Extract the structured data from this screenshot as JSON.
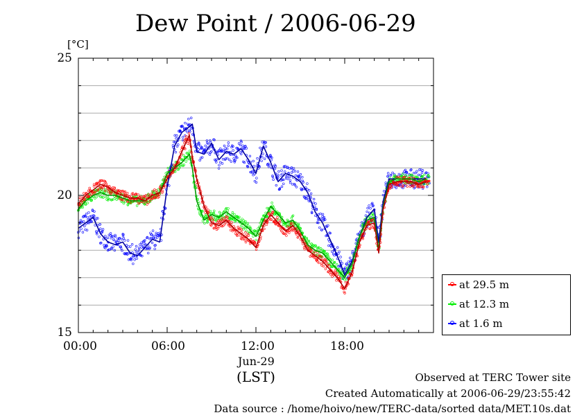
{
  "title": "Dew Point / 2006-06-29",
  "unit": "[°C]",
  "date_label": "Jun-29",
  "lst_label": "(LST)",
  "footer": {
    "line1": "Observed at TERC Tower site",
    "line2": "Created Automatically at 2006-06-29/23:55:42",
    "line3": "Data source : /home/hoivo/new/TERC-data/sorted  data/MET.10s.dat"
  },
  "colors": {
    "s1": "#ff0000",
    "s2": "#00ee00",
    "s3": "#0000ff"
  },
  "chart_data": {
    "type": "line",
    "title": "Dew Point / 2006-06-29",
    "ylabel": "[°C]",
    "xlabel": "(LST)",
    "xlim": [
      0,
      24
    ],
    "ylim": [
      15,
      25
    ],
    "yticks": [
      "15",
      "20",
      "25"
    ],
    "xticks": [
      "00:00",
      "06:00",
      "12:00",
      "18:00"
    ],
    "grid": true,
    "legend_position": "bottom-right-outside",
    "series": [
      {
        "name": "at 29.5 m",
        "x": [
          0,
          0.5,
          1,
          1.5,
          2,
          2.5,
          3,
          3.5,
          4,
          4.5,
          5,
          5.5,
          6,
          6.5,
          7,
          7.5,
          7.7,
          8,
          8.5,
          9,
          9.5,
          10,
          10.5,
          11,
          11.5,
          12,
          12.5,
          13,
          13.5,
          14,
          14.5,
          15,
          15.5,
          16,
          16.5,
          17,
          17.5,
          18,
          18.5,
          19,
          19.5,
          20,
          20.3,
          20.6,
          21,
          21.5,
          22,
          22.5,
          23,
          23.5
        ],
        "y": [
          19.7,
          20.0,
          20.2,
          20.4,
          20.3,
          20.1,
          20.0,
          19.9,
          19.9,
          19.8,
          20.0,
          20.1,
          20.6,
          21.0,
          21.6,
          22.2,
          21.4,
          20.6,
          19.6,
          19.0,
          18.9,
          19.1,
          18.8,
          18.6,
          18.4,
          18.1,
          18.9,
          19.3,
          19.0,
          18.7,
          18.9,
          18.5,
          18.0,
          17.8,
          17.6,
          17.3,
          17.0,
          16.6,
          17.2,
          18.3,
          18.9,
          19.0,
          17.9,
          19.5,
          20.4,
          20.5,
          20.5,
          20.5,
          20.4,
          20.5
        ]
      },
      {
        "name": "at 12.3 m",
        "x": [
          0,
          0.5,
          1,
          1.5,
          2,
          2.5,
          3,
          3.5,
          4,
          4.5,
          5,
          5.5,
          6,
          6.5,
          7,
          7.5,
          7.7,
          8,
          8.5,
          9,
          9.5,
          10,
          10.5,
          11,
          11.5,
          12,
          12.5,
          13,
          13.5,
          14,
          14.5,
          15,
          15.5,
          16,
          16.5,
          17,
          17.5,
          18,
          18.5,
          19,
          19.5,
          20,
          20.3,
          20.6,
          21,
          21.5,
          22,
          22.5,
          23,
          23.5
        ],
        "y": [
          19.5,
          19.8,
          20.0,
          20.1,
          20.0,
          20.0,
          19.9,
          19.8,
          19.8,
          19.8,
          20.0,
          20.1,
          20.8,
          21.0,
          21.2,
          21.5,
          21.0,
          19.8,
          19.1,
          19.3,
          19.2,
          19.4,
          19.2,
          19.0,
          18.8,
          18.5,
          19.1,
          19.6,
          19.3,
          19.0,
          19.1,
          18.7,
          18.2,
          18.0,
          17.9,
          17.6,
          17.3,
          17.0,
          17.5,
          18.5,
          19.1,
          19.2,
          18.0,
          19.6,
          20.5,
          20.6,
          20.6,
          20.6,
          20.5,
          20.6
        ]
      },
      {
        "name": "at 1.6 m",
        "x": [
          0,
          0.5,
          1,
          1.5,
          2,
          2.5,
          3,
          3.5,
          4,
          4.5,
          5,
          5.5,
          6,
          6.5,
          7,
          7.5,
          7.7,
          8,
          8.5,
          9,
          9.5,
          10,
          10.5,
          11,
          11.5,
          12,
          12.5,
          13,
          13.5,
          14,
          14.5,
          15,
          15.5,
          16,
          16.5,
          17,
          17.5,
          18,
          18.5,
          19,
          19.5,
          20,
          20.3,
          20.6,
          21,
          21.5,
          22,
          22.5,
          23,
          23.5
        ],
        "y": [
          18.8,
          19.0,
          19.2,
          18.6,
          18.3,
          18.2,
          18.3,
          17.9,
          17.8,
          18.1,
          18.4,
          18.3,
          20.3,
          21.8,
          22.3,
          22.5,
          22.6,
          21.6,
          21.5,
          21.9,
          21.3,
          21.6,
          21.5,
          21.7,
          21.3,
          20.8,
          21.8,
          21.2,
          20.5,
          20.8,
          20.7,
          20.5,
          20.1,
          19.4,
          19.0,
          18.4,
          17.8,
          17.1,
          17.6,
          18.5,
          19.2,
          19.5,
          18.3,
          19.8,
          20.6,
          20.6,
          20.6,
          20.6,
          20.6,
          20.6
        ]
      }
    ]
  },
  "legend": [
    {
      "label": "at 29.5 m",
      "color": "#ff0000"
    },
    {
      "label": "at 12.3 m",
      "color": "#00ee00"
    },
    {
      "label": "at 1.6 m",
      "color": "#0000ff"
    }
  ]
}
